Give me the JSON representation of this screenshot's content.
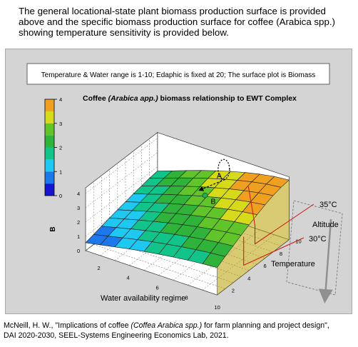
{
  "intro_text": "The general locational-state plant biomass production surface is provided above and the specific biomass production surface for coffee (Arabica spp.) showing temperature sensitivity is provided below.",
  "info_box": "Temperature & Water range is 1-10; Edaphic is fixed at 20; The surface plot is Biomass",
  "caption": {
    "line1_prefix": "McNeill, H. W., \"Implications of coffee ",
    "line1_italic": "(Coffea Arabica spp.)",
    "line1_suffix": " for farm planning and project design\",",
    "line2": "DAI 2020-2030, SEEL-Systems Engineering Economics Lab, 2021."
  },
  "chart_data": {
    "type": "surface",
    "title_prefix": "Coffee ",
    "title_italic": "(Arabica app.)",
    "title_suffix": " biomass relationship to EWT Complex",
    "xlabel": "Water availability regime",
    "ylabel": "Temperature",
    "zlabel": "B",
    "x_ticks": [
      2,
      4,
      6,
      8,
      10
    ],
    "y_ticks": [
      2,
      4,
      6,
      8,
      10
    ],
    "z_ticks": [
      0,
      1,
      2,
      3,
      4
    ],
    "xlim": [
      1,
      10
    ],
    "ylim": [
      1,
      10
    ],
    "zlim": [
      0,
      4
    ],
    "color_scale": {
      "ticks": [
        0,
        1,
        2,
        3,
        4
      ],
      "bands": [
        {
          "from": 0.0,
          "to": 0.5,
          "color": "#1515d0"
        },
        {
          "from": 0.5,
          "to": 1.0,
          "color": "#1c78ea"
        },
        {
          "from": 1.0,
          "to": 1.5,
          "color": "#1ec8f0"
        },
        {
          "from": 1.5,
          "to": 2.0,
          "color": "#13c48a"
        },
        {
          "from": 2.0,
          "to": 2.5,
          "color": "#2fb33a"
        },
        {
          "from": 2.5,
          "to": 3.0,
          "color": "#60c42a"
        },
        {
          "from": 3.0,
          "to": 3.5,
          "color": "#d7da1a"
        },
        {
          "from": 3.5,
          "to": 4.0,
          "color": "#f0a020"
        }
      ]
    },
    "surface": {
      "x": [
        1,
        2,
        3,
        4,
        5,
        6,
        7,
        8,
        9,
        10
      ],
      "y": [
        1,
        2,
        3,
        4,
        5,
        6,
        7,
        8,
        9,
        10
      ],
      "z_rows_by_y": [
        [
          0.55,
          0.75,
          0.95,
          1.15,
          1.32,
          1.48,
          1.62,
          1.74,
          1.84,
          1.92
        ],
        [
          0.7,
          0.93,
          1.16,
          1.37,
          1.57,
          1.75,
          1.91,
          2.05,
          2.17,
          2.26
        ],
        [
          0.85,
          1.1,
          1.35,
          1.58,
          1.8,
          2.0,
          2.18,
          2.34,
          2.47,
          2.57
        ],
        [
          1.0,
          1.27,
          1.54,
          1.79,
          2.03,
          2.25,
          2.45,
          2.62,
          2.77,
          2.89
        ],
        [
          1.14,
          1.43,
          1.72,
          1.99,
          2.25,
          2.49,
          2.71,
          2.9,
          3.06,
          3.19
        ],
        [
          1.27,
          1.58,
          1.89,
          2.18,
          2.46,
          2.72,
          2.95,
          3.16,
          3.33,
          3.47
        ],
        [
          1.4,
          1.72,
          2.05,
          2.36,
          2.66,
          2.93,
          3.18,
          3.4,
          3.58,
          3.73
        ],
        [
          1.52,
          1.86,
          2.2,
          2.53,
          2.84,
          3.12,
          3.38,
          3.61,
          3.8,
          3.95
        ],
        [
          1.63,
          1.98,
          2.34,
          2.68,
          3.0,
          3.29,
          3.56,
          3.79,
          3.98,
          4.1
        ],
        [
          1.7,
          2.06,
          2.43,
          2.78,
          3.1,
          3.4,
          3.67,
          3.9,
          4.08,
          4.18
        ]
      ]
    },
    "annotations": [
      {
        "label": "A",
        "x": 5.5,
        "y": 9.0,
        "z": 3.3
      },
      {
        "label": "B",
        "x": 6.0,
        "y": 6.8,
        "z": 3.1
      }
    ],
    "side_labels": {
      "high_temp": "35°C",
      "low_temp": "30°C",
      "altitude": "Altitude"
    },
    "temp_marks": {
      "high_y": 9.3,
      "low_y": 7.0
    }
  }
}
